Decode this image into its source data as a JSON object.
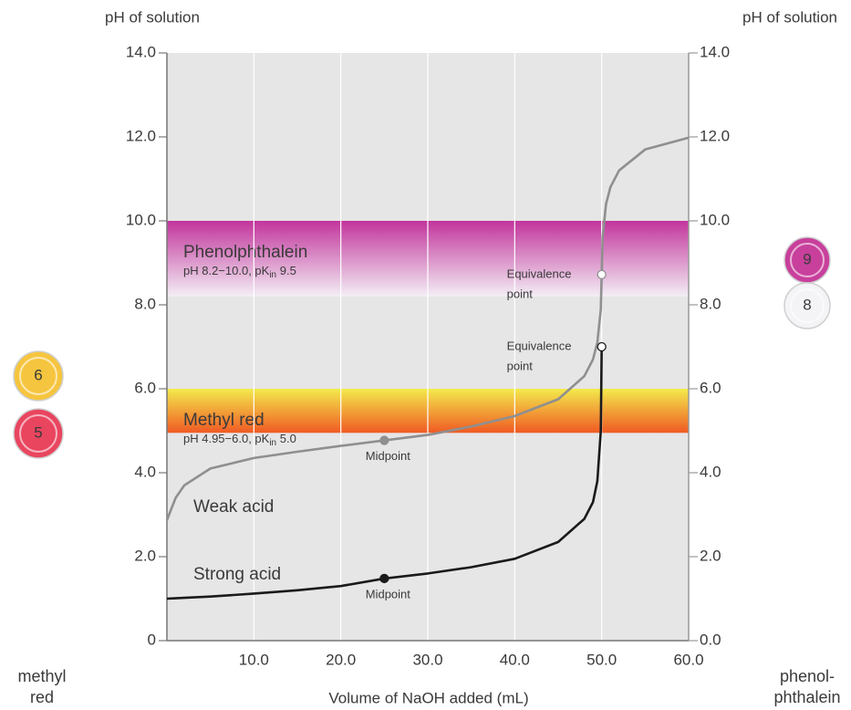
{
  "chart_data": {
    "type": "line",
    "x_label": "Volume of NaOH added (mL)",
    "y_label": "pH of solution",
    "y2_label": "pH of solution",
    "xlim": [
      0,
      60
    ],
    "xticks": [
      {
        "value": 10,
        "label": "10.0"
      },
      {
        "value": 20,
        "label": "20.0"
      },
      {
        "value": 30,
        "label": "30.0"
      },
      {
        "value": 40,
        "label": "40.0"
      },
      {
        "value": 50,
        "label": "50.0"
      },
      {
        "value": 60,
        "label": "60.0"
      }
    ],
    "ylim": [
      0,
      14
    ],
    "yticks": [
      0,
      {
        "value": 2,
        "label": "2.0"
      },
      {
        "value": 4,
        "label": "4.0"
      },
      {
        "value": 6,
        "label": "6.0"
      },
      {
        "value": 8,
        "label": "8.0"
      },
      {
        "value": 10,
        "label": "10.0"
      },
      {
        "value": 12,
        "label": "12.0"
      },
      {
        "value": 14,
        "label": "14.0"
      }
    ],
    "y2lim": [
      0,
      14
    ],
    "y2ticks": [
      {
        "value": 0,
        "label": "0.0"
      },
      {
        "value": 2,
        "label": "2.0"
      },
      {
        "value": 4,
        "label": "4.0"
      },
      {
        "value": 6,
        "label": "6.0"
      },
      {
        "value": 8,
        "label": "8.0"
      },
      {
        "value": 10,
        "label": "10.0"
      },
      {
        "value": 12,
        "label": "12.0"
      },
      {
        "value": 14,
        "label": "14.0"
      }
    ],
    "grid": true,
    "x": [
      0,
      1,
      2,
      5,
      10,
      15,
      20,
      25,
      30,
      35,
      40,
      45,
      48,
      49,
      49.5,
      49.9,
      50,
      50.1,
      50.5,
      51,
      52,
      55,
      60
    ],
    "series": [
      {
        "name": "Weak acid",
        "color": "#8f8f8f",
        "values": [
          2.87,
          3.4,
          3.7,
          4.1,
          4.35,
          4.5,
          4.64,
          4.77,
          4.9,
          5.1,
          5.35,
          5.75,
          6.3,
          6.7,
          7.1,
          7.9,
          8.72,
          9.6,
          10.4,
          10.8,
          11.2,
          11.7,
          11.98
        ]
      },
      {
        "name": "Strong acid",
        "color": "#1a1a1a",
        "values": [
          1.0,
          1.01,
          1.02,
          1.05,
          1.12,
          1.2,
          1.3,
          1.48,
          1.6,
          1.75,
          1.95,
          2.35,
          2.9,
          3.3,
          3.8,
          5.0,
          7.0,
          null,
          null,
          null,
          null,
          null,
          null
        ]
      }
    ],
    "bands": [
      {
        "name": "Phenolphthalein",
        "note": [
          "pH 8.2−10.0, pK",
          "in",
          " 9.5"
        ],
        "from": 8.2,
        "to": 10.0,
        "colors": [
          "#c2359c",
          "#f3eef5"
        ]
      },
      {
        "name": "Methyl red",
        "note": [
          "pH 4.95−6.0, pK",
          "in",
          " 5.0"
        ],
        "from": 4.95,
        "to": 6.0,
        "colors": [
          "#f3ea4c",
          "#f05a24"
        ]
      }
    ],
    "annotations": [
      {
        "text": [
          "Equivalence",
          "point"
        ],
        "x": 50,
        "y": 8.72,
        "marker": "open",
        "color": "#8f8f8f"
      },
      {
        "text": [
          "Equivalence",
          "point"
        ],
        "x": 50,
        "y": 7.0,
        "marker": "open",
        "color": "#1a1a1a"
      },
      {
        "text": [
          "Midpoint"
        ],
        "x": 25,
        "y": 4.77,
        "marker": "filled",
        "color": "#8f8f8f"
      },
      {
        "text": [
          "Midpoint"
        ],
        "x": 25,
        "y": 1.48,
        "marker": "filled",
        "color": "#1a1a1a"
      }
    ],
    "indicators": [
      {
        "name": [
          "methyl",
          "red"
        ],
        "swatches": [
          {
            "label": "6",
            "color": "#f6c53f"
          },
          {
            "label": "5",
            "color": "#e9455f"
          }
        ]
      },
      {
        "name": [
          "phenol-",
          "phthalein"
        ],
        "swatches": [
          {
            "label": "9",
            "color": "#c8409c"
          },
          {
            "label": "8",
            "color": "#f4f3f6"
          }
        ]
      }
    ]
  }
}
